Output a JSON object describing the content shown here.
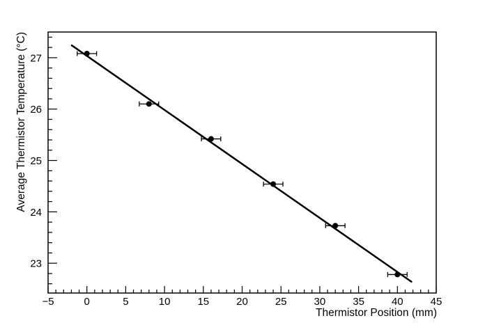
{
  "window": {
    "background": "#ffffff",
    "foreground": "#000000"
  },
  "chart_data": {
    "type": "scatter",
    "title": "",
    "xlabel": "Thermistor Position (mm)",
    "ylabel": "Average Thermistor Temperature (°C)",
    "xlim": [
      -5,
      45
    ],
    "ylim": [
      22.42,
      27.5
    ],
    "x_major_ticks": [
      -5,
      0,
      5,
      10,
      15,
      20,
      25,
      30,
      35,
      40,
      45
    ],
    "x_minor_step": 1,
    "y_major_ticks": [
      23,
      24,
      25,
      26,
      27
    ],
    "y_minor_step": 0.2,
    "grid": false,
    "legend": false,
    "axis_color": "#000000",
    "series": [
      {
        "name": "thermistor-measurements",
        "marker": "filled-circle",
        "color": "#000000",
        "points": [
          {
            "x": 0,
            "y": 27.08,
            "xerr": 1.25
          },
          {
            "x": 8,
            "y": 26.1,
            "xerr": 1.25
          },
          {
            "x": 16,
            "y": 25.42,
            "xerr": 1.25
          },
          {
            "x": 24,
            "y": 24.54,
            "xerr": 1.25
          },
          {
            "x": 32,
            "y": 23.73,
            "xerr": 1.25
          },
          {
            "x": 40,
            "y": 22.78,
            "xerr": 1.25
          }
        ]
      }
    ],
    "fit_line": {
      "name": "linear-fit",
      "color": "#000000",
      "x1": -1.95,
      "y1": 27.24,
      "x2": 41.8,
      "y2": 22.64
    }
  }
}
